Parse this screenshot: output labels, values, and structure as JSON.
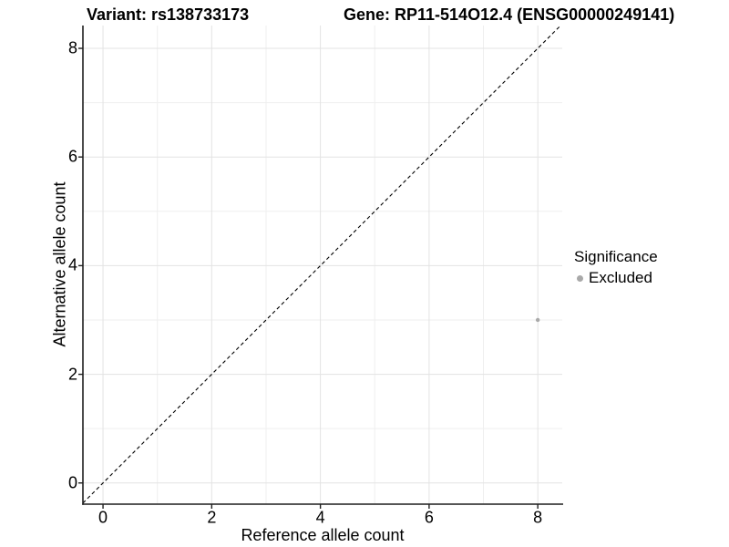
{
  "chart_data": {
    "type": "scatter",
    "title_left": "Variant: rs138733173",
    "title_right": "Gene: RP11-514O12.4 (ENSG00000249141)",
    "xlabel": "Reference allele count",
    "ylabel": "Alternative allele count",
    "xlim": [
      -0.37,
      8.45
    ],
    "ylim": [
      -0.39,
      8.42
    ],
    "x_ticks": [
      0,
      2,
      4,
      6,
      8
    ],
    "y_ticks": [
      0,
      2,
      4,
      6,
      8
    ],
    "x_minor_ticks": [
      1,
      3,
      5,
      7
    ],
    "y_minor_ticks": [
      1,
      3,
      5,
      7
    ],
    "grid": "major+minor",
    "reference_line": {
      "type": "identity",
      "slope": 1,
      "intercept": 0,
      "style": "dashed",
      "color": "#000000"
    },
    "series": [
      {
        "name": "Excluded",
        "color": "#a9a9a9",
        "points": [
          {
            "x": 8,
            "y": 3
          }
        ]
      }
    ],
    "legend": {
      "title": "Significance",
      "position": "right",
      "entries": [
        {
          "label": "Excluded",
          "color": "#a9a9a9",
          "marker": "circle"
        }
      ]
    }
  },
  "colors": {
    "background": "#ffffff",
    "grid_major": "#e3e3e3",
    "grid_minor": "#efefef",
    "axis": "#1f1f1f",
    "text": "#000000"
  }
}
